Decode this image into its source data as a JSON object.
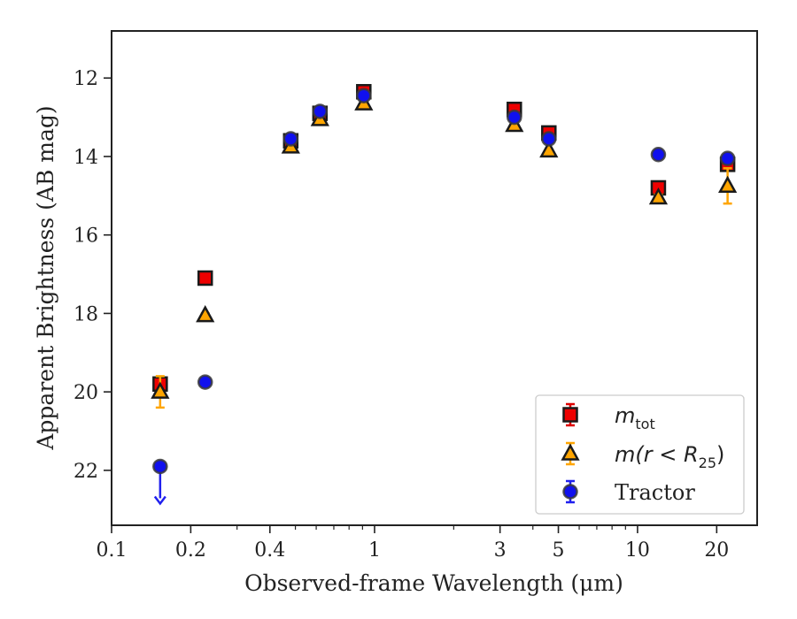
{
  "chart_data": {
    "type": "scatter",
    "xlabel": "Observed-frame Wavelength (μm)",
    "ylabel": "Apparent Brightness (AB mag)",
    "xscale": "log",
    "xlim": [
      0.1,
      28.5
    ],
    "ylim": [
      23.4,
      10.8
    ],
    "y_inverted": true,
    "x_ticks": [
      {
        "value": 0.1,
        "label": "0.1"
      },
      {
        "value": 0.2,
        "label": "0.2"
      },
      {
        "value": 0.4,
        "label": "0.4"
      },
      {
        "value": 1,
        "label": "1"
      },
      {
        "value": 3,
        "label": "3"
      },
      {
        "value": 5,
        "label": "5"
      },
      {
        "value": 10,
        "label": "10"
      },
      {
        "value": 20,
        "label": "20"
      }
    ],
    "y_ticks": [
      {
        "value": 12,
        "label": "12"
      },
      {
        "value": 14,
        "label": "14"
      },
      {
        "value": 16,
        "label": "16"
      },
      {
        "value": 18,
        "label": "18"
      },
      {
        "value": 20,
        "label": "20"
      },
      {
        "value": 22,
        "label": "22"
      }
    ],
    "grid": false,
    "legend_position": "bottom-right",
    "series": [
      {
        "key": "mtot",
        "legend_base": "m",
        "legend_sub": "tot",
        "marker": "square",
        "color": "#ee0000",
        "errcolor": "#dd0000",
        "points": [
          {
            "x": 0.153,
            "y": 19.8,
            "err": 0.15
          },
          {
            "x": 0.227,
            "y": 17.1,
            "err": 0.05
          },
          {
            "x": 0.48,
            "y": 13.6,
            "err": 0.03
          },
          {
            "x": 0.62,
            "y": 12.9,
            "err": 0.03
          },
          {
            "x": 0.91,
            "y": 12.35,
            "err": 0.03
          },
          {
            "x": 3.4,
            "y": 12.8,
            "err": 0.03
          },
          {
            "x": 4.6,
            "y": 13.4,
            "err": 0.03
          },
          {
            "x": 12.0,
            "y": 14.8,
            "err": 0.05
          },
          {
            "x": 22.0,
            "y": 14.2,
            "err": 0.1
          }
        ]
      },
      {
        "key": "mr25",
        "legend_base": "m(r < R",
        "legend_sub": "25",
        "legend_tail": ")",
        "marker": "triangle",
        "color": "#ffa500",
        "errcolor": "#ffa500",
        "points": [
          {
            "x": 0.153,
            "y": 20.0,
            "err": 0.4
          },
          {
            "x": 0.227,
            "y": 18.05,
            "err": 0.05
          },
          {
            "x": 0.48,
            "y": 13.75,
            "err": 0.03
          },
          {
            "x": 0.62,
            "y": 13.05,
            "err": 0.03
          },
          {
            "x": 0.91,
            "y": 12.65,
            "err": 0.03
          },
          {
            "x": 3.4,
            "y": 13.2,
            "err": 0.03
          },
          {
            "x": 4.6,
            "y": 13.85,
            "err": 0.03
          },
          {
            "x": 12.0,
            "y": 15.05,
            "err": 0.08
          },
          {
            "x": 22.0,
            "y": 14.75,
            "err": 0.45
          }
        ]
      },
      {
        "key": "tractor",
        "legend_label": "Tractor",
        "marker": "circle",
        "color": "#1010ee",
        "errcolor": "#2020ee",
        "points": [
          {
            "x": 0.153,
            "y": 21.9,
            "upper_limit": true
          },
          {
            "x": 0.227,
            "y": 19.75,
            "err": 0.05
          },
          {
            "x": 0.48,
            "y": 13.55,
            "err": 0.03
          },
          {
            "x": 0.62,
            "y": 12.85,
            "err": 0.03
          },
          {
            "x": 0.91,
            "y": 12.45,
            "err": 0.03
          },
          {
            "x": 3.4,
            "y": 13.0,
            "err": 0.03
          },
          {
            "x": 4.6,
            "y": 13.55,
            "err": 0.03
          },
          {
            "x": 12.0,
            "y": 13.95,
            "err": 0.05
          },
          {
            "x": 22.0,
            "y": 14.05,
            "err": 0.05
          }
        ]
      }
    ]
  }
}
